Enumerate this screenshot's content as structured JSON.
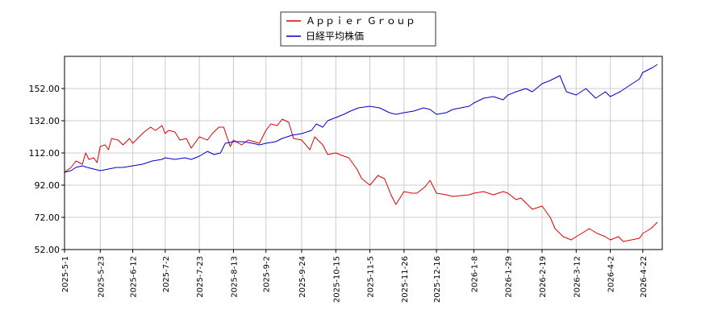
{
  "chart_data": {
    "type": "line",
    "title": "",
    "xlabel": "",
    "ylabel": "",
    "ylim": [
      52,
      172
    ],
    "xlim": [
      "2025-05-01",
      "2026-05-04"
    ],
    "yticks": [
      52.0,
      72.0,
      92.0,
      112.0,
      132.0,
      152.0
    ],
    "ytick_labels": [
      "52.00",
      "72.00",
      "92.00",
      "112.00",
      "132.00",
      "152.00"
    ],
    "xtick_labels": [
      "2025-5-1",
      "2025-5-23",
      "2025-6-12",
      "2025-7-2",
      "2025-7-23",
      "2025-8-13",
      "2025-9-2",
      "2025-9-24",
      "2025-10-15",
      "2025-11-5",
      "2025-11-26",
      "2025-12-16",
      "2026-1-8",
      "2026-1-29",
      "2026-2-19",
      "2026-3-12",
      "2026-4-2",
      "2026-4-22"
    ],
    "xtick_dates": [
      "2025-05-01",
      "2025-05-23",
      "2025-06-12",
      "2025-07-02",
      "2025-07-23",
      "2025-08-13",
      "2025-09-02",
      "2025-09-24",
      "2025-10-15",
      "2025-11-05",
      "2025-11-26",
      "2025-12-16",
      "2026-01-08",
      "2026-01-29",
      "2026-02-19",
      "2026-03-12",
      "2026-04-02",
      "2026-04-22"
    ],
    "grid": true,
    "legend_position": "top-center",
    "series": [
      {
        "name": "Ａｐｐｉｅｒ Ｇｒｏｕｐ",
        "color": "#dd0000",
        "x": [
          "2025-05-01",
          "2025-05-05",
          "2025-05-08",
          "2025-05-12",
          "2025-05-14",
          "2025-05-16",
          "2025-05-19",
          "2025-05-21",
          "2025-05-23",
          "2025-05-26",
          "2025-05-28",
          "2025-05-30",
          "2025-06-03",
          "2025-06-06",
          "2025-06-10",
          "2025-06-12",
          "2025-06-16",
          "2025-06-19",
          "2025-06-23",
          "2025-06-26",
          "2025-06-30",
          "2025-07-02",
          "2025-07-04",
          "2025-07-08",
          "2025-07-11",
          "2025-07-15",
          "2025-07-18",
          "2025-07-23",
          "2025-07-28",
          "2025-07-31",
          "2025-08-04",
          "2025-08-07",
          "2025-08-11",
          "2025-08-13",
          "2025-08-18",
          "2025-08-22",
          "2025-08-26",
          "2025-08-29",
          "2025-09-02",
          "2025-09-05",
          "2025-09-09",
          "2025-09-12",
          "2025-09-16",
          "2025-09-19",
          "2025-09-24",
          "2025-09-29",
          "2025-10-02",
          "2025-10-07",
          "2025-10-10",
          "2025-10-15",
          "2025-10-20",
          "2025-10-23",
          "2025-10-28",
          "2025-10-31",
          "2025-11-05",
          "2025-11-10",
          "2025-11-14",
          "2025-11-18",
          "2025-11-21",
          "2025-11-26",
          "2025-12-01",
          "2025-12-04",
          "2025-12-09",
          "2025-12-12",
          "2025-12-16",
          "2025-12-22",
          "2025-12-26",
          "2026-01-05",
          "2026-01-08",
          "2026-01-14",
          "2026-01-20",
          "2026-01-26",
          "2026-01-29",
          "2026-02-03",
          "2026-02-06",
          "2026-02-10",
          "2026-02-13",
          "2026-02-19",
          "2026-02-24",
          "2026-02-27",
          "2026-03-04",
          "2026-03-09",
          "2026-03-12",
          "2026-03-17",
          "2026-03-20",
          "2026-03-25",
          "2026-03-30",
          "2026-04-02",
          "2026-04-07",
          "2026-04-10",
          "2026-04-15",
          "2026-04-20",
          "2026-04-22",
          "2026-04-27",
          "2026-05-01"
        ],
        "y": [
          100,
          103,
          107,
          105,
          112,
          108,
          109,
          106,
          116,
          117,
          114,
          121,
          120,
          117,
          121,
          118,
          122,
          125,
          128,
          126,
          129,
          124,
          126,
          125,
          120,
          121,
          115,
          122,
          120,
          124,
          128,
          128,
          116,
          120,
          117,
          120,
          119,
          118,
          126,
          130,
          129,
          133,
          131,
          121,
          120,
          114,
          122,
          117,
          111,
          112,
          110,
          109,
          102,
          96,
          92,
          98,
          96,
          86,
          80,
          88,
          87,
          87,
          91,
          95,
          87,
          86,
          85,
          86,
          87,
          88,
          86,
          88,
          87,
          83,
          84,
          80,
          77,
          79,
          72,
          65,
          60,
          58,
          60,
          63,
          65,
          62,
          60,
          58,
          60,
          57,
          58,
          59,
          62,
          65,
          69
        ]
      },
      {
        "name": "日経平均株価",
        "color": "#0000cc",
        "x": [
          "2025-05-01",
          "2025-05-05",
          "2025-05-08",
          "2025-05-12",
          "2025-05-15",
          "2025-05-19",
          "2025-05-23",
          "2025-05-28",
          "2025-06-02",
          "2025-06-06",
          "2025-06-12",
          "2025-06-18",
          "2025-06-24",
          "2025-06-30",
          "2025-07-02",
          "2025-07-08",
          "2025-07-14",
          "2025-07-18",
          "2025-07-23",
          "2025-07-28",
          "2025-08-01",
          "2025-08-05",
          "2025-08-08",
          "2025-08-13",
          "2025-08-19",
          "2025-08-25",
          "2025-08-29",
          "2025-09-02",
          "2025-09-08",
          "2025-09-12",
          "2025-09-18",
          "2025-09-24",
          "2025-09-30",
          "2025-10-03",
          "2025-10-07",
          "2025-10-10",
          "2025-10-15",
          "2025-10-20",
          "2025-10-24",
          "2025-10-29",
          "2025-11-05",
          "2025-11-11",
          "2025-11-17",
          "2025-11-21",
          "2025-11-26",
          "2025-12-02",
          "2025-12-08",
          "2025-12-12",
          "2025-12-16",
          "2025-12-22",
          "2025-12-26",
          "2026-01-05",
          "2026-01-08",
          "2026-01-14",
          "2026-01-20",
          "2026-01-26",
          "2026-01-29",
          "2026-02-03",
          "2026-02-09",
          "2026-02-13",
          "2026-02-19",
          "2026-02-24",
          "2026-03-02",
          "2026-03-06",
          "2026-03-12",
          "2026-03-18",
          "2026-03-24",
          "2026-03-30",
          "2026-04-02",
          "2026-04-08",
          "2026-04-14",
          "2026-04-20",
          "2026-04-22",
          "2026-04-28",
          "2026-05-01"
        ],
        "y": [
          100,
          101,
          103,
          104,
          103,
          102,
          101,
          102,
          103,
          103,
          104,
          105,
          107,
          108,
          109,
          108,
          109,
          108,
          110,
          113,
          111,
          112,
          118,
          119,
          119,
          118,
          117,
          118,
          119,
          121,
          123,
          124,
          126,
          130,
          128,
          132,
          134,
          136,
          138,
          140,
          141,
          140,
          137,
          136,
          137,
          138,
          140,
          139,
          136,
          137,
          139,
          141,
          143,
          146,
          147,
          145,
          148,
          150,
          152,
          150,
          155,
          157,
          160,
          150,
          148,
          152,
          146,
          150,
          147,
          150,
          154,
          158,
          162,
          165,
          167
        ]
      }
    ]
  }
}
